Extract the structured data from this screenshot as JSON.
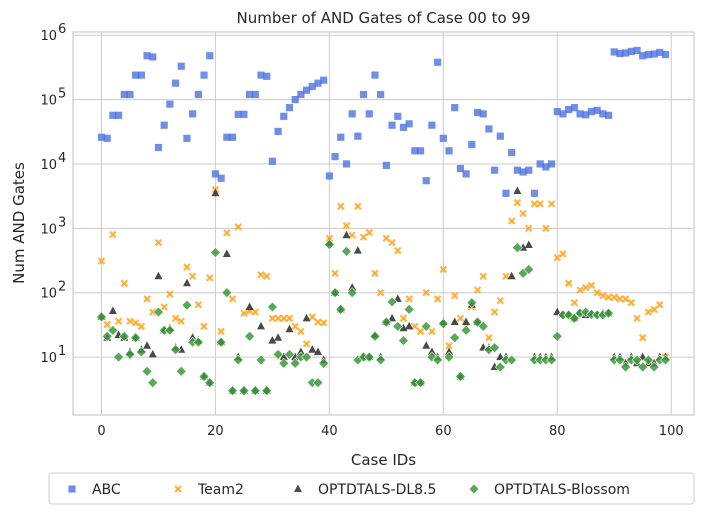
{
  "chart_data": {
    "type": "scatter",
    "title": "Number of AND Gates of Case 00 to 99",
    "xlabel": "Case IDs",
    "ylabel": "Num AND Gates",
    "xlim": [
      -5,
      104
    ],
    "ylim_log10": [
      0.1,
      6.05
    ],
    "yscale": "log",
    "xticks": [
      0,
      20,
      40,
      60,
      80,
      100
    ],
    "xtick_labels": [
      "0",
      "20",
      "40",
      "60",
      "80",
      "100"
    ],
    "yticks": [
      1,
      2,
      3,
      4,
      5,
      6
    ],
    "ytick_labels": [
      "10",
      "10",
      "10",
      "10",
      "10",
      "10"
    ],
    "ytick_exponents": [
      "1",
      "2",
      "3",
      "4",
      "5",
      "6"
    ],
    "grid": true,
    "legend_position": "bottom-center",
    "series": [
      {
        "name": "ABC",
        "marker": "square",
        "color": "#4c72e0",
        "x": [
          0,
          1,
          2,
          3,
          4,
          5,
          6,
          7,
          8,
          9,
          10,
          11,
          12,
          13,
          14,
          15,
          16,
          17,
          18,
          19,
          20,
          21,
          22,
          23,
          24,
          25,
          26,
          27,
          28,
          29,
          30,
          31,
          32,
          33,
          34,
          35,
          36,
          37,
          38,
          39,
          40,
          41,
          42,
          43,
          44,
          45,
          46,
          47,
          48,
          49,
          50,
          51,
          52,
          53,
          54,
          55,
          56,
          57,
          58,
          59,
          60,
          61,
          62,
          63,
          64,
          65,
          66,
          67,
          68,
          69,
          70,
          71,
          72,
          73,
          74,
          75,
          76,
          77,
          78,
          79,
          80,
          81,
          82,
          83,
          84,
          85,
          86,
          87,
          88,
          89,
          90,
          91,
          92,
          93,
          94,
          95,
          96,
          97,
          98,
          99
        ],
        "y": [
          26000,
          25000,
          57000,
          57000,
          120000,
          120000,
          240000,
          240000,
          480000,
          460000,
          18000,
          40000,
          85000,
          180000,
          330000,
          25000,
          60000,
          120000,
          240000,
          480000,
          7000,
          6000,
          26000,
          26000,
          59000,
          59000,
          120000,
          120000,
          240000,
          230000,
          11000,
          32000,
          55000,
          75000,
          100000,
          120000,
          140000,
          160000,
          180000,
          200000,
          6500,
          13000,
          26000,
          10000,
          60000,
          27000,
          120000,
          60000,
          240000,
          120000,
          9500,
          40000,
          55000,
          37000,
          42000,
          16000,
          16000,
          5500,
          40000,
          380000,
          25000,
          16000,
          75000,
          8500,
          7000,
          20000,
          63000,
          60000,
          35000,
          8000,
          27000,
          3500,
          15000,
          8000,
          7500,
          8000,
          3500,
          10000,
          9000,
          10000,
          65000,
          60000,
          70000,
          75000,
          60000,
          58000,
          65000,
          68000,
          60000,
          57000,
          550000,
          520000,
          530000,
          560000,
          580000,
          480000,
          500000,
          510000,
          540000,
          500000
        ]
      },
      {
        "name": "Team2",
        "marker": "x",
        "color": "#ffa726",
        "x": [
          0,
          1,
          2,
          3,
          4,
          5,
          6,
          7,
          8,
          9,
          10,
          11,
          12,
          13,
          14,
          15,
          16,
          17,
          18,
          19,
          20,
          21,
          22,
          23,
          24,
          25,
          26,
          27,
          28,
          29,
          30,
          31,
          32,
          33,
          34,
          35,
          36,
          37,
          38,
          39,
          40,
          41,
          42,
          43,
          44,
          45,
          46,
          47,
          48,
          49,
          50,
          51,
          52,
          53,
          54,
          55,
          56,
          57,
          58,
          59,
          60,
          61,
          62,
          63,
          64,
          65,
          66,
          67,
          68,
          69,
          70,
          71,
          72,
          73,
          74,
          75,
          76,
          77,
          78,
          79,
          80,
          81,
          82,
          83,
          84,
          85,
          86,
          87,
          88,
          89,
          90,
          91,
          92,
          93,
          94,
          95,
          96,
          97,
          98,
          99
        ],
        "y": [
          310,
          32,
          800,
          36,
          140,
          36,
          34,
          30,
          80,
          50,
          600,
          60,
          95,
          40,
          36,
          250,
          180,
          65,
          30,
          170,
          4000,
          25,
          850,
          80,
          1050,
          48,
          52,
          50,
          190,
          180,
          40,
          40,
          40,
          40,
          30,
          25,
          16,
          42,
          35,
          34,
          700,
          200,
          2200,
          1100,
          780,
          2200,
          730,
          860,
          200,
          100,
          700,
          600,
          450,
          40,
          80,
          30,
          25,
          100,
          25,
          80,
          230,
          15,
          90,
          40,
          30,
          60,
          110,
          180,
          20,
          50,
          75,
          180,
          1300,
          2500,
          1700,
          1000,
          2400,
          2400,
          1000,
          2400,
          350,
          400,
          140,
          70,
          110,
          120,
          130,
          100,
          90,
          85,
          85,
          80,
          80,
          70,
          40,
          20,
          50,
          55,
          65,
          10
        ]
      },
      {
        "name": "OPTDTALS-DL8.5",
        "marker": "triangle",
        "color": "#2a2a2a",
        "x": [
          0,
          1,
          2,
          3,
          4,
          5,
          6,
          7,
          8,
          9,
          10,
          11,
          12,
          13,
          14,
          15,
          16,
          17,
          18,
          19,
          20,
          21,
          22,
          23,
          24,
          25,
          26,
          27,
          28,
          29,
          30,
          31,
          32,
          33,
          34,
          35,
          36,
          37,
          38,
          39,
          40,
          41,
          42,
          43,
          44,
          45,
          46,
          47,
          48,
          49,
          50,
          51,
          52,
          53,
          54,
          55,
          56,
          57,
          58,
          59,
          60,
          61,
          62,
          63,
          64,
          65,
          66,
          67,
          68,
          69,
          70,
          71,
          72,
          73,
          74,
          75,
          76,
          77,
          78,
          79,
          80,
          81,
          82,
          83,
          84,
          85,
          86,
          87,
          88,
          89,
          90,
          91,
          92,
          93,
          94,
          95,
          96,
          97,
          98,
          99
        ],
        "y": [
          42,
          20,
          52,
          22,
          20,
          12,
          20,
          13,
          15,
          11,
          180,
          26,
          28,
          14,
          13,
          140,
          20,
          18,
          5,
          4,
          3500,
          17,
          400,
          3,
          10,
          3,
          60,
          3,
          30,
          3,
          18,
          20,
          10,
          27,
          10,
          12,
          40,
          13,
          12,
          9,
          600,
          100,
          55,
          780,
          120,
          450,
          10,
          10,
          22,
          10,
          35,
          40,
          80,
          28,
          30,
          4,
          4,
          15,
          12,
          10,
          35,
          12,
          35,
          5,
          35,
          65,
          35,
          14,
          14,
          7,
          10,
          10,
          180,
          3800,
          500,
          550,
          10,
          10,
          10,
          10,
          50,
          46,
          46,
          40,
          50,
          45,
          48,
          46,
          48,
          48,
          10,
          10,
          8,
          10,
          8,
          10,
          8,
          8,
          10,
          10
        ]
      },
      {
        "name": "OPTDTALS-Blossom",
        "marker": "diamond",
        "color": "#3a9a3a",
        "x": [
          0,
          1,
          2,
          3,
          4,
          5,
          6,
          7,
          8,
          9,
          10,
          11,
          12,
          13,
          14,
          15,
          16,
          17,
          18,
          19,
          20,
          21,
          22,
          23,
          24,
          25,
          26,
          27,
          28,
          29,
          30,
          31,
          32,
          33,
          34,
          35,
          36,
          37,
          38,
          39,
          40,
          41,
          42,
          43,
          44,
          45,
          46,
          47,
          48,
          49,
          50,
          51,
          52,
          53,
          54,
          55,
          56,
          57,
          58,
          59,
          60,
          61,
          62,
          63,
          64,
          65,
          66,
          67,
          68,
          69,
          70,
          71,
          72,
          73,
          74,
          75,
          76,
          77,
          78,
          79,
          80,
          81,
          82,
          83,
          84,
          85,
          86,
          87,
          88,
          89,
          90,
          91,
          92,
          93,
          94,
          95,
          96,
          97,
          98,
          99
        ],
        "y": [
          42,
          21,
          26,
          10,
          21,
          11,
          20,
          12,
          6,
          4,
          50,
          26,
          26,
          13,
          6,
          64,
          17,
          17,
          5,
          4,
          420,
          17,
          100,
          3,
          9,
          3,
          21,
          3,
          9,
          3,
          60,
          11,
          8,
          11,
          8,
          10,
          10,
          4,
          4,
          8,
          560,
          100,
          55,
          440,
          100,
          9,
          10,
          10,
          21,
          9,
          35,
          72,
          30,
          18,
          55,
          4,
          4,
          30,
          10,
          9,
          33,
          10,
          20,
          5,
          26,
          70,
          35,
          30,
          13,
          14,
          7,
          9,
          9,
          500,
          200,
          230,
          9,
          9,
          9,
          9,
          21,
          45,
          45,
          40,
          48,
          50,
          46,
          45,
          45,
          48,
          9,
          9,
          7,
          9,
          9,
          7,
          9,
          7,
          9,
          9
        ]
      }
    ]
  }
}
